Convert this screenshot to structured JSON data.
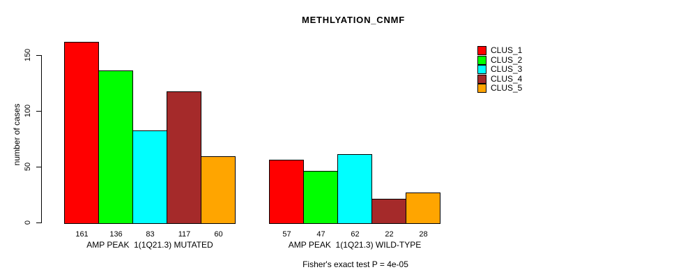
{
  "chart_data": {
    "type": "bar",
    "title": "METHLYATION_CNMF",
    "ylabel": "number of cases",
    "footnote": "Fisher's exact test P = 4e-05",
    "ylim": [
      0,
      161
    ],
    "yticks": [
      0,
      50,
      100,
      150
    ],
    "grid": false,
    "legend_position": "top-right",
    "categories": [
      "AMP PEAK  1(1Q21.3) MUTATED",
      "AMP PEAK  1(1Q21.3) WILD-TYPE"
    ],
    "series": [
      {
        "name": "CLUS_1",
        "color": "#ff0000",
        "values": [
          161,
          57
        ]
      },
      {
        "name": "CLUS_2",
        "color": "#00ff00",
        "values": [
          136,
          47
        ]
      },
      {
        "name": "CLUS_3",
        "color": "#00ffff",
        "values": [
          83,
          62
        ]
      },
      {
        "name": "CLUS_4",
        "color": "#a52a2a",
        "values": [
          117,
          22
        ]
      },
      {
        "name": "CLUS_5",
        "color": "#ffa500",
        "values": [
          60,
          28
        ]
      }
    ],
    "value_labels_shown": true
  }
}
